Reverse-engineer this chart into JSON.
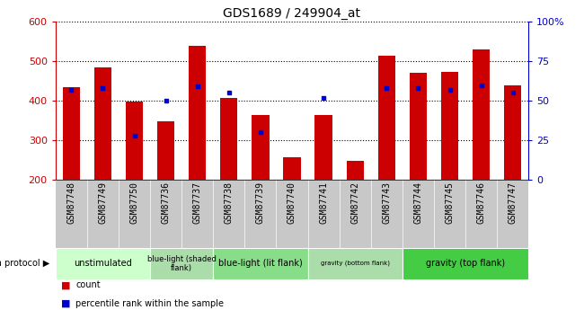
{
  "title": "GDS1689 / 249904_at",
  "samples": [
    "GSM87748",
    "GSM87749",
    "GSM87750",
    "GSM87736",
    "GSM87737",
    "GSM87738",
    "GSM87739",
    "GSM87740",
    "GSM87741",
    "GSM87742",
    "GSM87743",
    "GSM87744",
    "GSM87745",
    "GSM87746",
    "GSM87747"
  ],
  "counts": [
    435,
    485,
    397,
    348,
    540,
    408,
    365,
    257,
    365,
    249,
    513,
    470,
    472,
    530,
    440
  ],
  "percentiles": [
    57,
    58,
    28,
    50,
    59,
    55,
    30,
    null,
    52,
    null,
    58,
    58,
    57,
    60,
    55
  ],
  "ymin": 200,
  "ymax": 600,
  "yticks": [
    200,
    300,
    400,
    500,
    600
  ],
  "y2min": 0,
  "y2max": 100,
  "y2ticks": [
    0,
    25,
    50,
    75,
    100
  ],
  "bar_color": "#cc0000",
  "dot_color": "#0000cc",
  "groups": [
    {
      "label": "unstimulated",
      "start": 0,
      "end": 3,
      "color": "#ccffcc",
      "fontsize": 8
    },
    {
      "label": "blue-light (shaded\nflank)",
      "start": 3,
      "end": 5,
      "color": "#aaddaa",
      "fontsize": 7
    },
    {
      "label": "blue-light (lit flank)",
      "start": 5,
      "end": 8,
      "color": "#88dd88",
      "fontsize": 8
    },
    {
      "label": "gravity (bottom flank)",
      "start": 8,
      "end": 11,
      "color": "#aaddaa",
      "fontsize": 6
    },
    {
      "label": "gravity (top flank)",
      "start": 11,
      "end": 15,
      "color": "#44cc44",
      "fontsize": 8
    }
  ],
  "growth_protocol_label": "growth protocol",
  "legend_count": "count",
  "legend_percentile": "percentile rank within the sample",
  "tick_area_color": "#c8c8c8",
  "xlim_left": -0.5,
  "xlim_right": 14.5
}
